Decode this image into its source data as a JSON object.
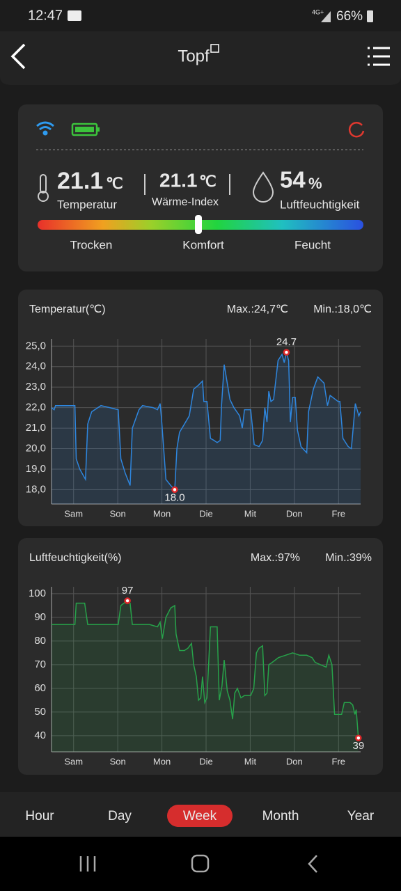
{
  "status": {
    "time": "12:47",
    "network": "4G+",
    "battery": "66%"
  },
  "header": {
    "title": "Topf"
  },
  "summary": {
    "temperature": {
      "value": "21.1",
      "unit": "℃",
      "label": "Temperatur"
    },
    "heat_index": {
      "value": "21.1",
      "unit": "℃",
      "label": "Wärme-Index"
    },
    "humidity": {
      "value": "54",
      "unit": "%",
      "label": "Luftfeuchtigkeit"
    },
    "scale": [
      "Trocken",
      "Komfort",
      "Feucht"
    ]
  },
  "chart_data": [
    {
      "type": "line",
      "title": "Temperatur(℃)",
      "max_label": "Max.:24,7℃",
      "min_label": "Min.:18,0℃",
      "color": "#2e86de",
      "xlim": [
        -0.5,
        6.5
      ],
      "xticks": [
        {
          "value": 0,
          "label": "Sam"
        },
        {
          "value": 1,
          "label": "Son"
        },
        {
          "value": 2,
          "label": "Mon"
        },
        {
          "value": 3,
          "label": "Die"
        },
        {
          "value": 4,
          "label": "Mit"
        },
        {
          "value": 5,
          "label": "Don"
        },
        {
          "value": 6,
          "label": "Fre"
        }
      ],
      "ylim": [
        17.3,
        25.35
      ],
      "yticks": [
        {
          "value": 18,
          "label": "18,0"
        },
        {
          "value": 19,
          "label": "19,0"
        },
        {
          "value": 20,
          "label": "20,0"
        },
        {
          "value": 21,
          "label": "21,0"
        },
        {
          "value": 22,
          "label": "22,0"
        },
        {
          "value": 23,
          "label": "23,0"
        },
        {
          "value": 24,
          "label": "24,0"
        },
        {
          "value": 25,
          "label": "25,0"
        }
      ],
      "grid": true,
      "x": [
        -0.5,
        -0.44,
        -0.41,
        0.03,
        0.06,
        0.14,
        0.27,
        0.32,
        0.41,
        0.62,
        0.82,
        1.01,
        1.07,
        1.17,
        1.28,
        1.33,
        1.48,
        1.56,
        1.8,
        1.9,
        1.96,
        1.99,
        2.09,
        2.2,
        2.29,
        2.34,
        2.4,
        2.51,
        2.62,
        2.72,
        2.83,
        2.92,
        2.95,
        3.02,
        3.1,
        3.18,
        3.25,
        3.32,
        3.35,
        3.41,
        3.48,
        3.54,
        3.63,
        3.76,
        3.82,
        3.87,
        4.01,
        4.09,
        4.2,
        4.28,
        4.33,
        4.38,
        4.42,
        4.47,
        4.53,
        4.63,
        4.72,
        4.77,
        4.82,
        4.87,
        4.91,
        4.96,
        5.02,
        5.07,
        5.15,
        5.28,
        5.32,
        5.43,
        5.53,
        5.67,
        5.75,
        5.81,
        5.99,
        6.03,
        6.1,
        6.22,
        6.29,
        6.38,
        6.46,
        6.5
      ],
      "values": [
        22.0,
        21.9,
        22.1,
        22.1,
        19.5,
        19.0,
        18.5,
        21.2,
        21.8,
        22.1,
        22.0,
        21.9,
        19.5,
        18.8,
        18.2,
        21.0,
        21.9,
        22.1,
        22.0,
        21.9,
        22.2,
        21.5,
        18.5,
        18.2,
        18.0,
        20.0,
        20.8,
        21.2,
        21.6,
        22.9,
        23.1,
        23.3,
        22.3,
        22.3,
        20.5,
        20.4,
        20.3,
        20.4,
        22.1,
        24.1,
        23.2,
        22.4,
        22.0,
        21.6,
        21.0,
        21.9,
        21.9,
        20.2,
        20.1,
        20.4,
        22.0,
        21.3,
        22.8,
        22.3,
        22.4,
        24.3,
        24.6,
        24.2,
        24.7,
        24.3,
        21.3,
        22.5,
        22.5,
        20.9,
        20.1,
        19.8,
        21.8,
        22.9,
        23.5,
        23.2,
        22.1,
        22.6,
        22.3,
        22.3,
        20.5,
        20.1,
        20.0,
        22.2,
        21.6,
        21.8
      ],
      "annotations": [
        {
          "x": 4.82,
          "y": 24.7,
          "label": "24.7"
        },
        {
          "x": 2.29,
          "y": 18.0,
          "label": "18.0"
        }
      ]
    },
    {
      "type": "line",
      "title": "Luftfeuchtigkeit(%)",
      "max_label": "Max.:97%",
      "min_label": "Min.:39%",
      "color": "#27a24a",
      "xlim": [
        -0.5,
        6.5
      ],
      "xticks": [
        {
          "value": 0,
          "label": "Sam"
        },
        {
          "value": 1,
          "label": "Son"
        },
        {
          "value": 2,
          "label": "Mon"
        },
        {
          "value": 3,
          "label": "Die"
        },
        {
          "value": 4,
          "label": "Mit"
        },
        {
          "value": 5,
          "label": "Don"
        },
        {
          "value": 6,
          "label": "Fre"
        }
      ],
      "ylim": [
        33.2,
        102.9
      ],
      "yticks": [
        40,
        50,
        60,
        70,
        80,
        90,
        100
      ],
      "grid": true,
      "x": [
        -0.5,
        0.03,
        0.06,
        0.25,
        0.32,
        0.62,
        1.01,
        1.07,
        1.14,
        1.22,
        1.28,
        1.33,
        1.48,
        1.72,
        1.9,
        1.96,
        2.01,
        2.09,
        2.2,
        2.29,
        2.32,
        2.4,
        2.51,
        2.59,
        2.67,
        2.72,
        2.78,
        2.83,
        2.88,
        2.92,
        2.97,
        3.02,
        3.1,
        3.25,
        3.3,
        3.36,
        3.41,
        3.48,
        3.54,
        3.6,
        3.65,
        3.71,
        3.79,
        3.87,
        4.01,
        4.08,
        4.14,
        4.2,
        4.28,
        4.33,
        4.38,
        4.42,
        4.5,
        4.64,
        4.8,
        4.96,
        5.12,
        5.28,
        5.4,
        5.47,
        5.59,
        5.72,
        5.78,
        5.85,
        5.91,
        6.07,
        6.13,
        6.26,
        6.32,
        6.37,
        6.4,
        6.45
      ],
      "values": [
        87,
        87,
        96,
        96,
        87,
        87,
        87,
        95,
        96,
        97,
        96,
        87,
        87,
        87,
        86,
        88,
        81,
        90,
        94,
        95,
        83,
        76,
        76,
        77,
        79,
        70,
        65,
        55,
        56,
        65,
        54,
        56,
        86,
        86,
        55,
        61,
        72,
        59,
        55,
        47,
        58,
        60,
        56,
        57,
        57,
        60,
        75,
        77,
        78,
        57,
        58,
        70,
        71,
        73,
        74,
        75,
        74,
        74,
        73,
        71,
        70,
        69,
        74,
        70,
        49,
        49,
        54,
        54,
        53,
        49,
        51,
        39
      ],
      "annotations": [
        {
          "x": 1.22,
          "y": 97,
          "label": "97"
        },
        {
          "x": 6.45,
          "y": 39,
          "label": "39"
        }
      ]
    }
  ],
  "tabs": {
    "items": [
      "Hour",
      "Day",
      "Week",
      "Month",
      "Year"
    ],
    "active": "Week"
  }
}
